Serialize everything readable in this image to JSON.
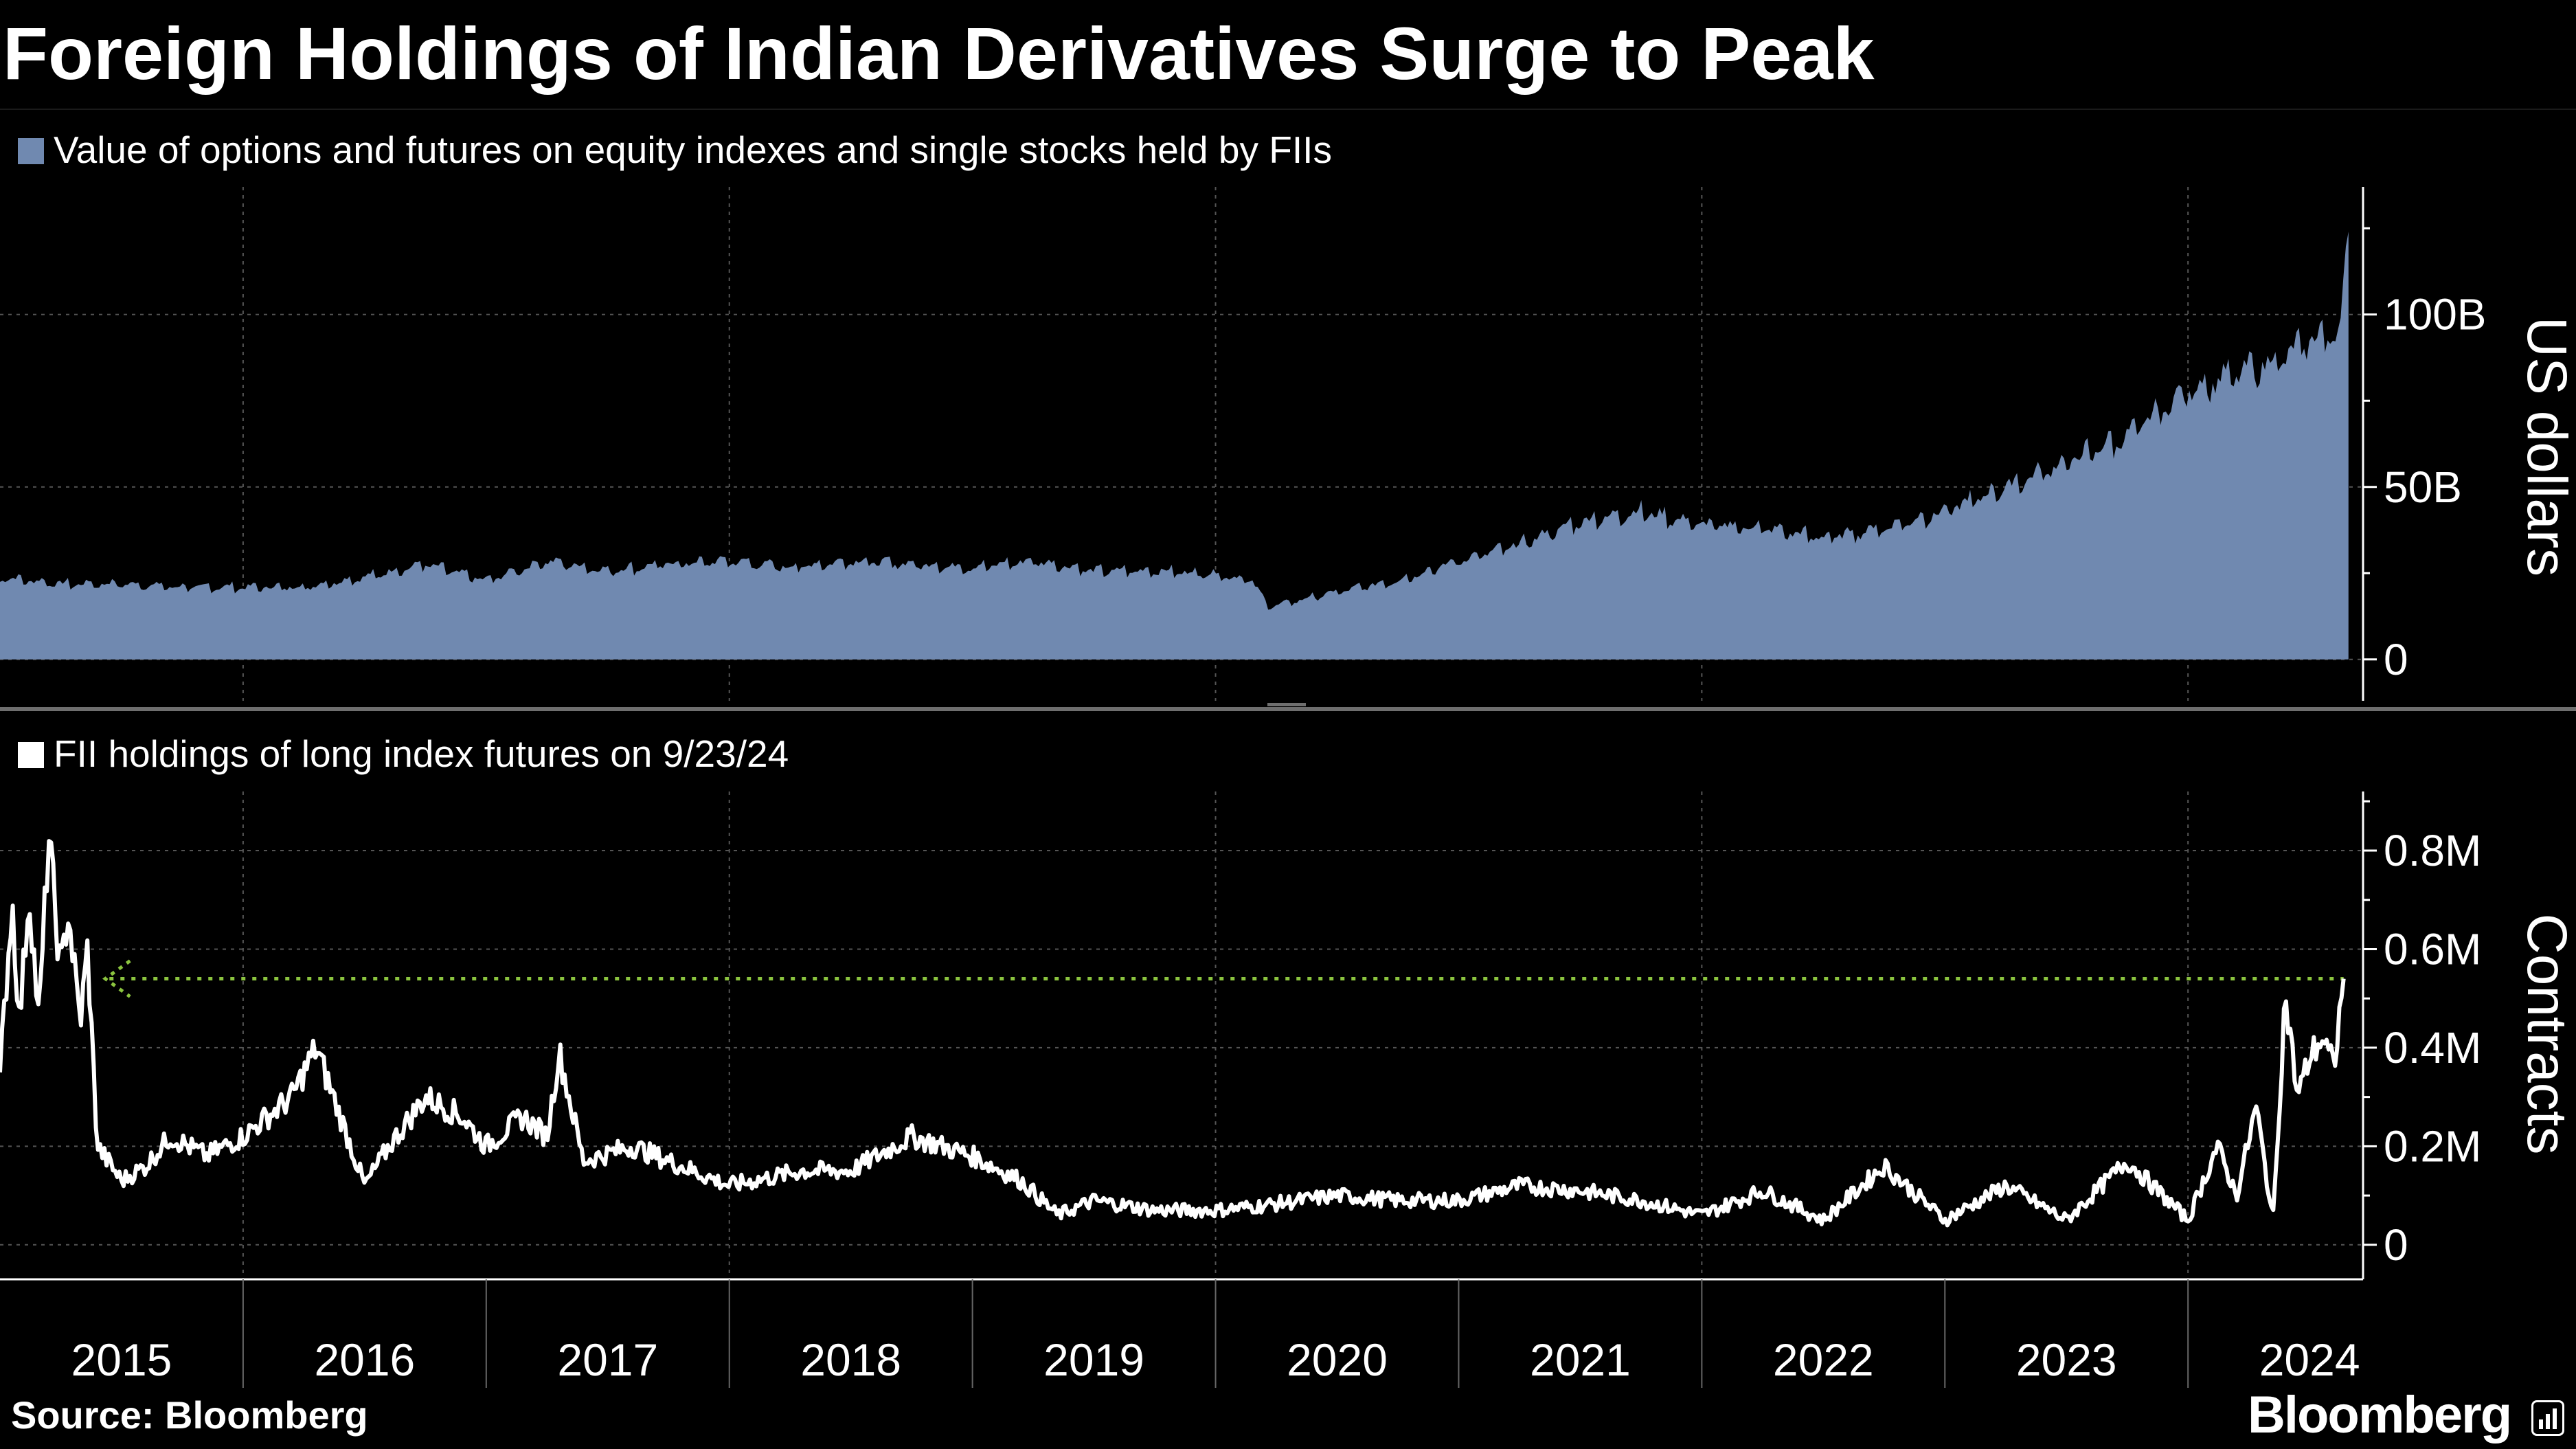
{
  "title": "Foreign Holdings of Indian Derivatives Surge to Peak",
  "source": "Source: Bloomberg",
  "logo": "Bloomberg",
  "colors": {
    "background": "#000000",
    "area": "#7089b0",
    "line": "#ffffff",
    "reference": "#8bc43f",
    "grid": "#555555"
  },
  "chart_data": [
    {
      "type": "area",
      "legend": "Value of options and futures on equity indexes and single stocks held by FIIs",
      "ylabel": "US dollars",
      "y_tick_labels": [
        "0",
        "50B",
        "100B"
      ],
      "y_tick_values": [
        0,
        50,
        100
      ],
      "unit": "USD billions",
      "ylim": [
        -12,
        137
      ],
      "xlim": [
        2015.0,
        2024.72
      ],
      "x": [
        2015.0,
        2015.25,
        2015.5,
        2015.75,
        2016.0,
        2016.25,
        2016.5,
        2016.75,
        2017.0,
        2017.25,
        2017.5,
        2017.75,
        2018.0,
        2018.25,
        2018.5,
        2018.75,
        2019.0,
        2019.25,
        2019.5,
        2019.75,
        2020.0,
        2020.15,
        2020.22,
        2020.4,
        2020.6,
        2020.75,
        2021.0,
        2021.25,
        2021.5,
        2021.75,
        2022.0,
        2022.25,
        2022.5,
        2022.75,
        2023.0,
        2023.2,
        2023.5,
        2023.75,
        2024.0,
        2024.25,
        2024.4,
        2024.5,
        2024.62,
        2024.66
      ],
      "values": [
        25,
        23,
        23,
        22,
        22,
        22,
        25,
        29,
        24,
        30,
        27,
        29,
        30,
        28,
        30,
        29,
        28,
        30,
        27,
        27,
        26,
        24,
        16,
        19,
        22,
        24,
        30,
        35,
        42,
        45,
        41,
        40,
        37,
        40,
        45,
        51,
        60,
        68,
        82,
        88,
        92,
        97,
        100,
        124
      ]
    },
    {
      "type": "line",
      "legend": "FII holdings of long index futures on 9/23/24",
      "ylabel": "Contracts",
      "y_tick_labels": [
        "0",
        "0.2M",
        "0.4M",
        "0.6M",
        "0.8M"
      ],
      "y_tick_values": [
        0,
        0.2,
        0.4,
        0.6,
        0.8
      ],
      "unit": "million contracts",
      "ylim": [
        -0.07,
        0.92
      ],
      "xlim": [
        2015.0,
        2024.72
      ],
      "reference_line": {
        "value": 0.54,
        "from_x": 2015.45,
        "to_x": 2024.64,
        "style": "dotted"
      },
      "x": [
        2015.0,
        2015.05,
        2015.08,
        2015.12,
        2015.16,
        2015.2,
        2015.25,
        2015.28,
        2015.33,
        2015.36,
        2015.4,
        2015.5,
        2015.6,
        2015.7,
        2015.85,
        2016.0,
        2016.2,
        2016.3,
        2016.5,
        2016.6,
        2016.75,
        2016.9,
        2017.0,
        2017.15,
        2017.25,
        2017.3,
        2017.4,
        2017.6,
        2017.8,
        2018.0,
        2018.3,
        2018.5,
        2018.75,
        2019.0,
        2019.2,
        2019.35,
        2019.5,
        2019.75,
        2020.0,
        2020.2,
        2020.5,
        2020.75,
        2021.0,
        2021.25,
        2021.5,
        2021.75,
        2022.0,
        2022.25,
        2022.5,
        2022.75,
        2023.0,
        2023.25,
        2023.5,
        2023.75,
        2024.0,
        2024.12,
        2024.2,
        2024.28,
        2024.35,
        2024.4,
        2024.45,
        2024.5,
        2024.55,
        2024.6,
        2024.64
      ],
      "values": [
        0.35,
        0.7,
        0.45,
        0.72,
        0.45,
        0.83,
        0.55,
        0.68,
        0.45,
        0.6,
        0.2,
        0.13,
        0.16,
        0.22,
        0.18,
        0.22,
        0.3,
        0.4,
        0.12,
        0.2,
        0.3,
        0.26,
        0.2,
        0.26,
        0.22,
        0.39,
        0.17,
        0.2,
        0.16,
        0.12,
        0.15,
        0.15,
        0.22,
        0.18,
        0.13,
        0.06,
        0.09,
        0.07,
        0.07,
        0.08,
        0.1,
        0.09,
        0.09,
        0.12,
        0.11,
        0.09,
        0.06,
        0.11,
        0.05,
        0.16,
        0.05,
        0.12,
        0.05,
        0.17,
        0.05,
        0.2,
        0.1,
        0.28,
        0.05,
        0.51,
        0.3,
        0.38,
        0.42,
        0.36,
        0.54
      ]
    }
  ],
  "x_axis": {
    "labels": [
      "2015",
      "2016",
      "2017",
      "2018",
      "2019",
      "2020",
      "2021",
      "2022",
      "2023",
      "2024"
    ],
    "tick_years": [
      2015.5,
      2016.5,
      2017.5,
      2018.5,
      2019.5,
      2020.5,
      2021.5,
      2022.5,
      2023.5,
      2024.5
    ],
    "grid_years": [
      2016,
      2018,
      2020,
      2022,
      2024
    ]
  }
}
